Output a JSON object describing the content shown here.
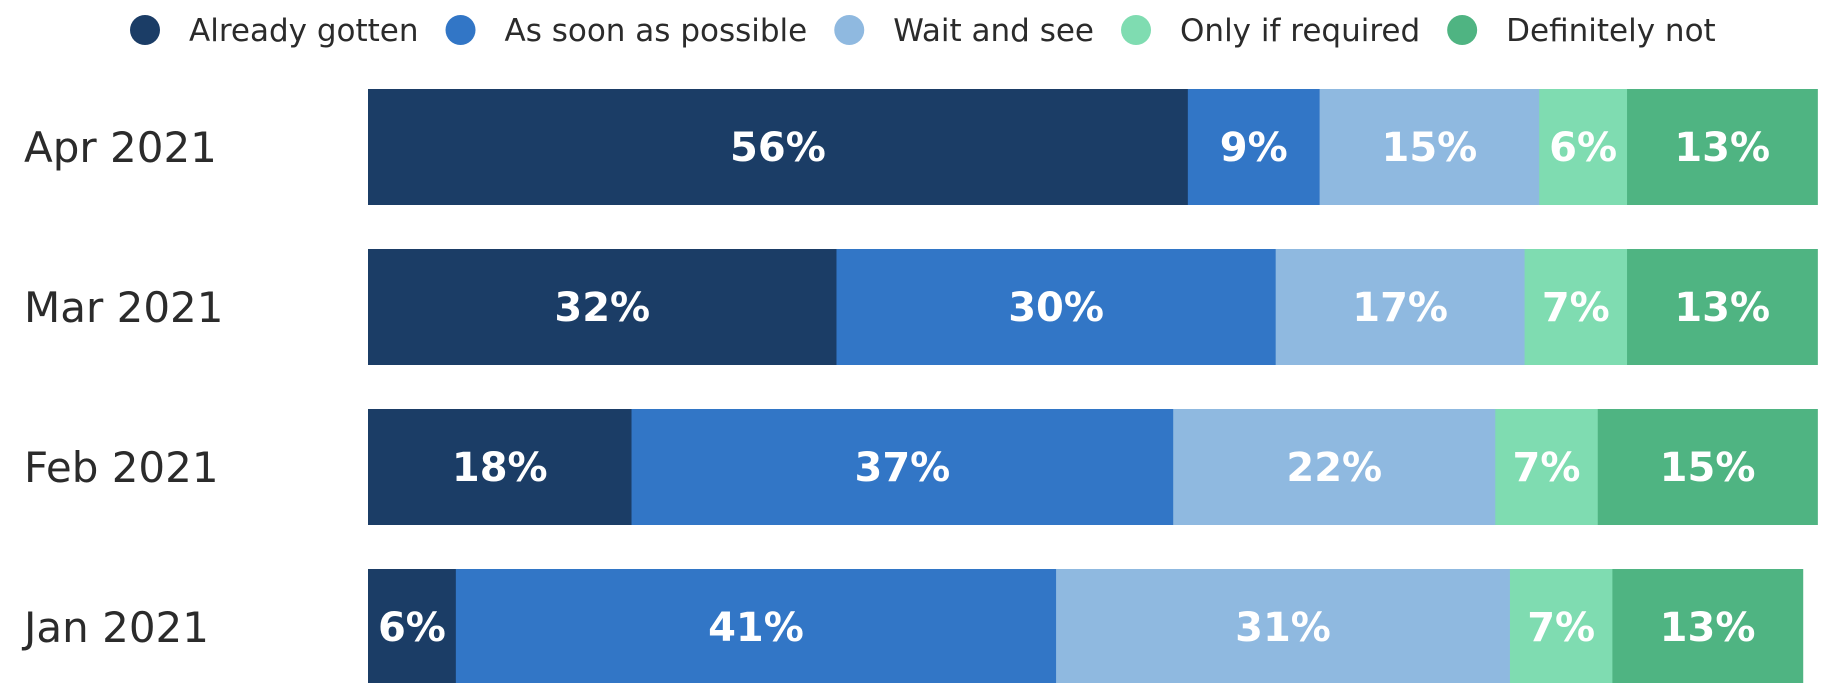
{
  "chart_data": {
    "type": "bar",
    "orientation": "horizontal",
    "stacked": true,
    "title": "",
    "xlabel": "",
    "ylabel": "",
    "xlim": [
      0,
      100
    ],
    "grid": false,
    "legend_position": "top",
    "categories": [
      "Apr 2021",
      "Mar 2021",
      "Feb 2021",
      "Jan 2021"
    ],
    "series": [
      {
        "name": "Already gotten",
        "color": "#1b3d66",
        "label_color": "#ffffff",
        "values": [
          56,
          32,
          18,
          6
        ]
      },
      {
        "name": "As soon as possible",
        "color": "#3276c6",
        "label_color": "#ffffff",
        "values": [
          9,
          30,
          37,
          41
        ]
      },
      {
        "name": "Wait and see",
        "color": "#8fb9e0",
        "label_color": "#ffffff",
        "values": [
          15,
          17,
          22,
          31
        ]
      },
      {
        "name": "Only if required",
        "color": "#7fdcb1",
        "label_color": "#ffffff",
        "values": [
          6,
          7,
          7,
          7
        ]
      },
      {
        "name": "Definitely not",
        "color": "#4fb482",
        "label_color": "#ffffff",
        "values": [
          13,
          13,
          15,
          13
        ]
      }
    ],
    "value_suffix": "%"
  }
}
